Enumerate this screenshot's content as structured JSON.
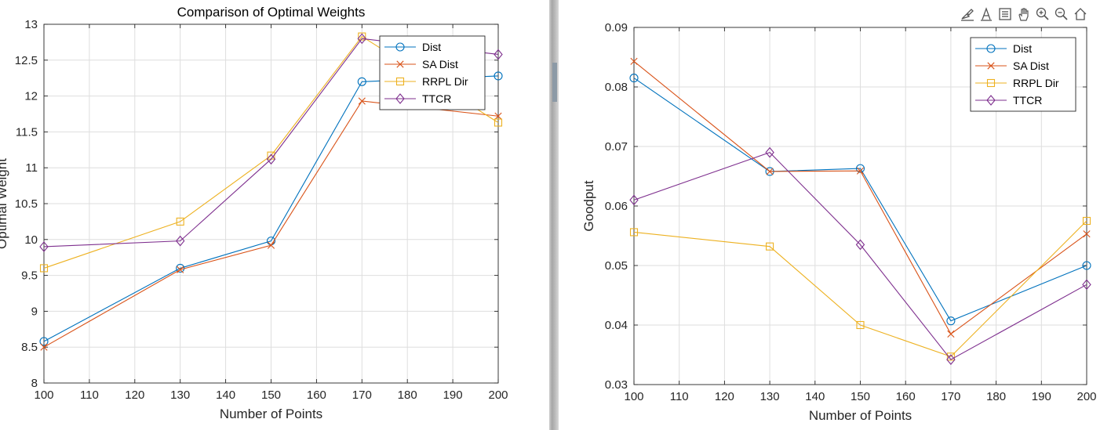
{
  "chart_data": [
    {
      "type": "line",
      "title": "Comparison of Optimal Weights",
      "xlabel": "Number of Points",
      "ylabel": "Optimal Weight",
      "xlim": [
        100,
        200
      ],
      "ylim": [
        8,
        13
      ],
      "xticks": [
        100,
        110,
        120,
        130,
        140,
        150,
        160,
        170,
        180,
        190,
        200
      ],
      "yticks": [
        8,
        8.5,
        9,
        9.5,
        10,
        10.5,
        11,
        11.5,
        12,
        12.5,
        13
      ],
      "ytick_labels": [
        "8",
        "8.5",
        "9",
        "9.5",
        "10",
        "10.5",
        "11",
        "11.5",
        "12",
        "12.5",
        "13"
      ],
      "grid": true,
      "legend_position": "top-right",
      "x": [
        100,
        130,
        150,
        170,
        200
      ],
      "series": [
        {
          "name": "Dist",
          "marker": "circle",
          "color": "#0072BD",
          "values": [
            8.58,
            9.6,
            9.98,
            12.2,
            12.28
          ]
        },
        {
          "name": "SA Dist",
          "marker": "x",
          "color": "#D95319",
          "values": [
            8.5,
            9.58,
            9.92,
            11.93,
            11.72
          ]
        },
        {
          "name": "RRPL Dir",
          "marker": "square",
          "color": "#EDB120",
          "values": [
            9.6,
            10.25,
            11.17,
            12.83,
            11.63
          ]
        },
        {
          "name": "TTCR",
          "marker": "diamond",
          "color": "#7E2F8E",
          "values": [
            9.9,
            9.98,
            11.12,
            12.8,
            12.58
          ]
        }
      ]
    },
    {
      "type": "line",
      "title": "",
      "xlabel": "Number of Points",
      "ylabel": "Goodput",
      "xlim": [
        100,
        200
      ],
      "ylim": [
        0.03,
        0.09
      ],
      "xticks": [
        100,
        110,
        120,
        130,
        140,
        150,
        160,
        170,
        180,
        190,
        200
      ],
      "yticks": [
        0.03,
        0.04,
        0.05,
        0.06,
        0.07,
        0.08,
        0.09
      ],
      "ytick_labels": [
        "0.03",
        "0.04",
        "0.05",
        "0.06",
        "0.07",
        "0.08",
        "0.09"
      ],
      "grid": true,
      "legend_position": "top-right",
      "x": [
        100,
        130,
        150,
        170,
        200
      ],
      "series": [
        {
          "name": "Dist",
          "marker": "circle",
          "color": "#0072BD",
          "values": [
            0.0815,
            0.0658,
            0.0663,
            0.0407,
            0.05
          ]
        },
        {
          "name": "SA Dist",
          "marker": "x",
          "color": "#D95319",
          "values": [
            0.0843,
            0.0658,
            0.0659,
            0.0385,
            0.0553
          ]
        },
        {
          "name": "RRPL Dir",
          "marker": "square",
          "color": "#EDB120",
          "values": [
            0.0556,
            0.0532,
            0.04,
            0.0347,
            0.0575
          ]
        },
        {
          "name": "TTCR",
          "marker": "diamond",
          "color": "#7E2F8E",
          "values": [
            0.061,
            0.069,
            0.0535,
            0.0342,
            0.0468
          ]
        }
      ]
    }
  ],
  "toolbar": {
    "icons": [
      "brush-icon",
      "data-tips-icon",
      "legend-icon",
      "pan-icon",
      "zoom-in-icon",
      "zoom-out-icon",
      "home-icon"
    ]
  }
}
